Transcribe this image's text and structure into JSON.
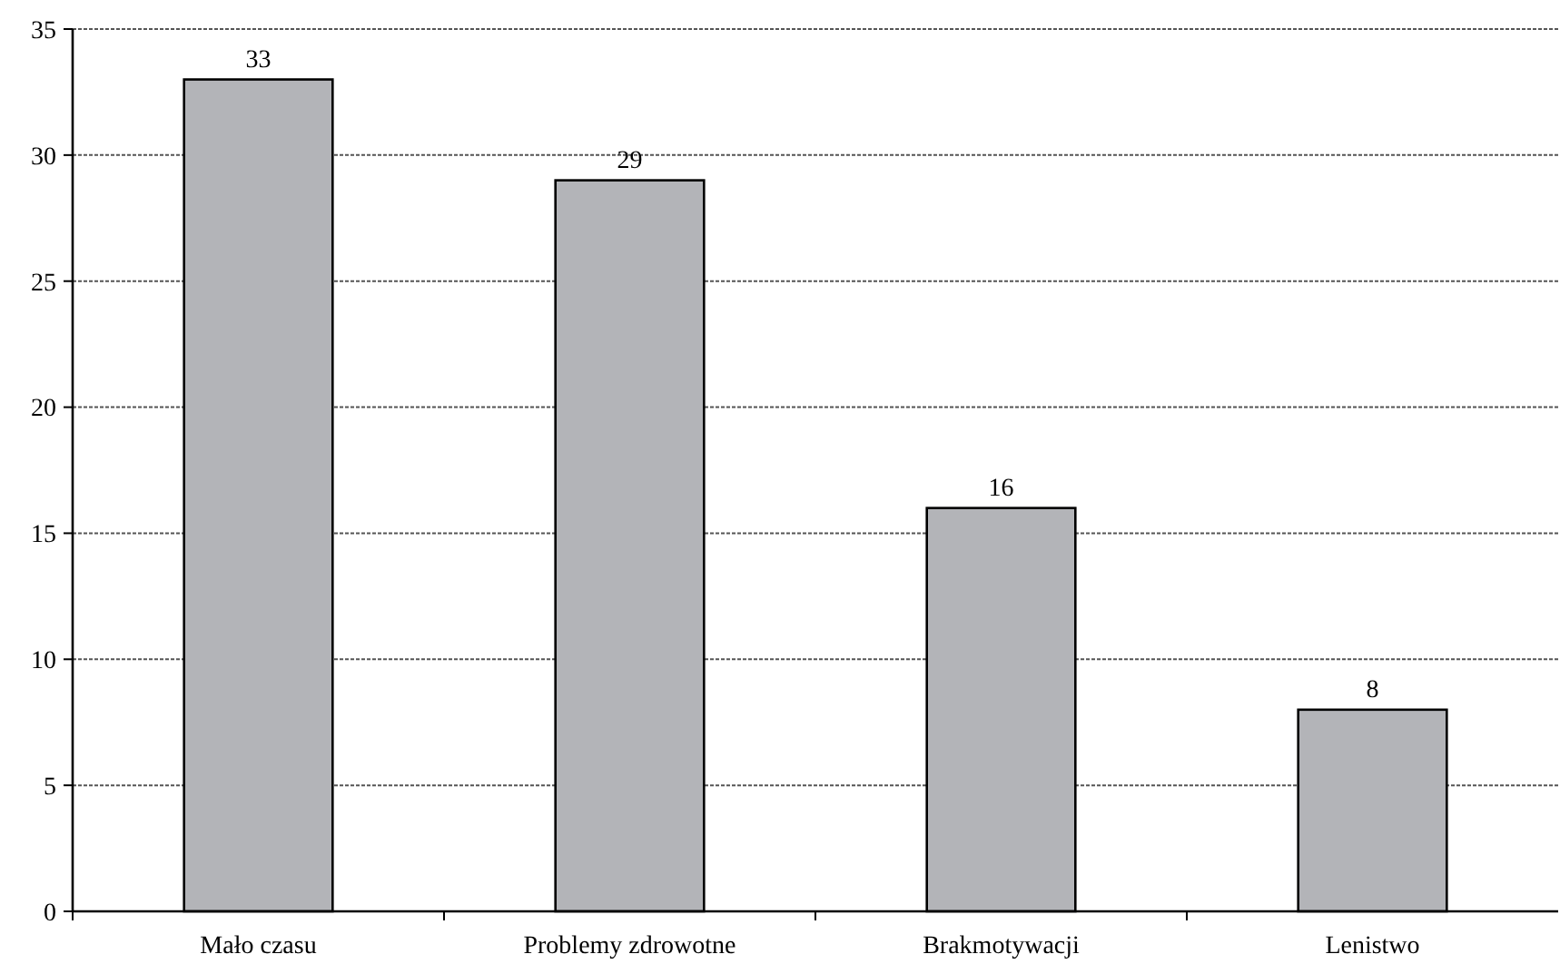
{
  "chart_data": {
    "type": "bar",
    "categories": [
      "Mało czasu",
      "Problemy zdrowotne",
      "Brakmotywacji",
      "Lenistwo"
    ],
    "values": [
      33,
      29,
      16,
      8
    ],
    "color": "#b3b4b8",
    "ylim": [
      0,
      35
    ],
    "yticks": [
      0,
      5,
      10,
      15,
      20,
      25,
      30,
      35
    ],
    "grid": "y",
    "data_labels": true
  }
}
